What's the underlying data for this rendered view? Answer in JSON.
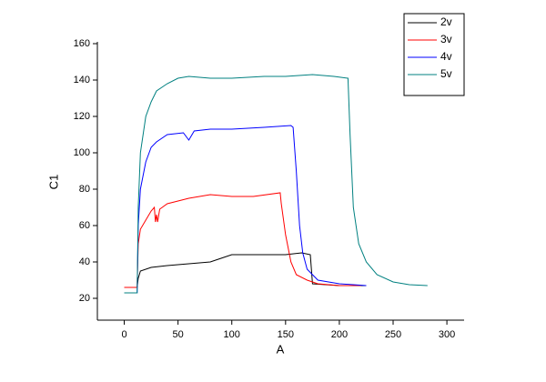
{
  "chart_data": {
    "type": "line",
    "x_label": "A",
    "y_label": "C1",
    "xlim": [
      -25,
      316
    ],
    "ylim": [
      8,
      161
    ],
    "xticks": [
      0,
      50,
      100,
      150,
      200,
      250,
      300
    ],
    "yticks": [
      20,
      40,
      60,
      80,
      100,
      120,
      140,
      160
    ],
    "legend": "upper right",
    "series": [
      {
        "name": "2v",
        "color": "#000000",
        "x": [
          0,
          12,
          13,
          15,
          25,
          40,
          60,
          80,
          90,
          100,
          150,
          165,
          173,
          175,
          200,
          225
        ],
        "values": [
          26,
          26,
          31,
          35,
          37,
          38,
          39,
          40,
          42,
          44,
          44,
          45,
          44,
          28,
          27,
          27
        ]
      },
      {
        "name": "3v",
        "color": "#ff0000",
        "x": [
          0,
          12,
          13,
          15,
          20,
          25,
          28,
          29,
          30,
          31,
          33,
          40,
          60,
          80,
          100,
          120,
          145,
          146,
          150,
          155,
          160,
          170,
          180,
          200,
          220
        ],
        "values": [
          26,
          26,
          50,
          58,
          63,
          68,
          70,
          62,
          66,
          62,
          69,
          72,
          75,
          77,
          76,
          76,
          78,
          72,
          55,
          40,
          33,
          30,
          28,
          27,
          27
        ]
      },
      {
        "name": "4v",
        "color": "#0000ff",
        "x": [
          0,
          12,
          13,
          15,
          20,
          25,
          30,
          40,
          55,
          60,
          65,
          80,
          100,
          130,
          155,
          157,
          160,
          163,
          166,
          170,
          180,
          200,
          225
        ],
        "values": [
          23,
          23,
          60,
          80,
          95,
          103,
          106,
          110,
          111,
          107,
          112,
          113,
          113,
          114,
          115,
          114,
          90,
          60,
          45,
          36,
          30,
          28,
          27
        ]
      },
      {
        "name": "5v",
        "color": "#008080",
        "x": [
          0,
          12,
          13,
          15,
          20,
          25,
          30,
          40,
          50,
          60,
          80,
          100,
          130,
          150,
          175,
          195,
          208,
          210,
          213,
          218,
          225,
          235,
          250,
          265,
          282
        ],
        "values": [
          23,
          23,
          70,
          100,
          120,
          128,
          134,
          138,
          141,
          142,
          141,
          141,
          142,
          142,
          143,
          142,
          141,
          110,
          70,
          50,
          40,
          33,
          29,
          27.5,
          27
        ]
      }
    ]
  }
}
